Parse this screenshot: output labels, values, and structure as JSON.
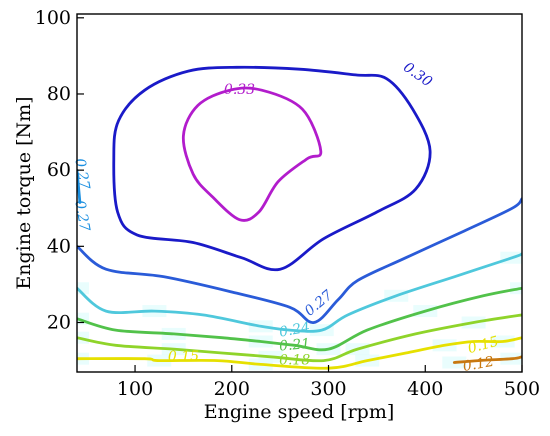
{
  "chart_data": {
    "type": "contour",
    "xlabel": "Engine speed [rpm]",
    "ylabel": "Engine torque [Nm]",
    "xlim": [
      40,
      500
    ],
    "ylim": [
      7,
      101
    ],
    "xticks": [
      100,
      200,
      300,
      400,
      500
    ],
    "yticks": [
      20,
      40,
      60,
      80,
      100
    ],
    "grid": false,
    "legend": "none",
    "levels": [
      {
        "value": 0.33,
        "label": "0.33",
        "color": "#b21ccc",
        "label_pos": [
          208,
          81
        ],
        "points": [
          [
            198,
            81
          ],
          [
            165,
            77
          ],
          [
            150,
            69
          ],
          [
            160,
            59
          ],
          [
            180,
            53
          ],
          [
            208,
            47
          ],
          [
            228,
            49
          ],
          [
            248,
            57
          ],
          [
            278,
            63
          ],
          [
            292,
            65
          ],
          [
            273,
            76
          ],
          [
            231,
            81
          ]
        ]
      },
      {
        "value": 0.3,
        "label": "0.30",
        "color": "#1a1ac8",
        "label_pos": [
          392,
          85
        ],
        "points": [
          [
            328,
            85
          ],
          [
            270,
            86.5
          ],
          [
            205,
            87
          ],
          [
            155,
            86
          ],
          [
            110,
            81
          ],
          [
            83,
            73
          ],
          [
            78,
            63
          ],
          [
            82,
            49
          ],
          [
            102,
            43
          ],
          [
            160,
            41
          ],
          [
            210,
            37
          ],
          [
            250,
            34
          ],
          [
            295,
            42
          ],
          [
            350,
            49
          ],
          [
            390,
            55
          ],
          [
            405,
            65
          ],
          [
            387,
            76
          ],
          [
            360,
            84
          ]
        ]
      },
      {
        "value": 0.27,
        "label": "0.27",
        "color": "#2a5bd8",
        "label_pos": [
          290,
          25
        ],
        "points": [
          [
            40,
            40
          ],
          [
            70,
            34
          ],
          [
            130,
            32
          ],
          [
            200,
            28
          ],
          [
            260,
            24
          ],
          [
            285,
            20
          ],
          [
            310,
            26
          ],
          [
            330,
            31
          ],
          [
            380,
            37
          ],
          [
            440,
            44
          ],
          [
            490,
            50
          ],
          [
            500,
            52.5
          ]
        ]
      },
      {
        "value": 0.27,
        "label": "0.27",
        "color": "#1b8fe0",
        "label_pos": [
          45,
          59
        ],
        "points": [
          [
            40,
            60
          ],
          [
            43,
            51.5
          ]
        ]
      },
      {
        "value": 0.27,
        "label": "0.27",
        "color": "#1b8fe0",
        "label_pos": [
          45,
          48
        ],
        "points": []
      },
      {
        "value": 0.24,
        "label": "0.24",
        "color": "#4fc8dc",
        "label_pos": [
          265,
          18
        ],
        "points": [
          [
            40,
            29
          ],
          [
            70,
            23
          ],
          [
            120,
            23
          ],
          [
            170,
            22
          ],
          [
            230,
            19
          ],
          [
            260,
            18
          ],
          [
            293,
            18
          ],
          [
            320,
            22
          ],
          [
            370,
            27
          ],
          [
            430,
            32
          ],
          [
            490,
            37
          ],
          [
            500,
            38
          ]
        ]
      },
      {
        "value": 0.21,
        "label": "0.21",
        "color": "#52c24a",
        "label_pos": [
          265,
          14
        ],
        "points": [
          [
            40,
            21
          ],
          [
            80,
            18
          ],
          [
            140,
            17
          ],
          [
            190,
            16
          ],
          [
            230,
            15
          ],
          [
            265,
            14
          ],
          [
            300,
            13
          ],
          [
            340,
            18
          ],
          [
            400,
            23
          ],
          [
            460,
            27
          ],
          [
            500,
            29
          ]
        ]
      },
      {
        "value": 0.18,
        "label": "0.18",
        "color": "#8fd42a",
        "label_pos": [
          265,
          10
        ],
        "points": [
          [
            40,
            16
          ],
          [
            80,
            14
          ],
          [
            140,
            13
          ],
          [
            190,
            12
          ],
          [
            240,
            11
          ],
          [
            295,
            10
          ],
          [
            330,
            13
          ],
          [
            390,
            17
          ],
          [
            450,
            20
          ],
          [
            500,
            22
          ]
        ]
      },
      {
        "value": 0.15,
        "label": "0.15",
        "color": "#e6e000",
        "label_pos": [
          150,
          11
        ],
        "points": [
          [
            40,
            10.5
          ],
          [
            110,
            10.5
          ],
          [
            125,
            10
          ],
          [
            185,
            10
          ],
          [
            230,
            9
          ],
          [
            300,
            8
          ],
          [
            340,
            10
          ],
          [
            380,
            12
          ],
          [
            420,
            14
          ],
          [
            450,
            15
          ],
          [
            480,
            15
          ],
          [
            500,
            16
          ]
        ]
      },
      {
        "value": 0.15,
        "label": "0.15",
        "color": "#e6e000",
        "label_pos": [
          460,
          14
        ],
        "points": []
      },
      {
        "value": 0.12,
        "label": "0.12",
        "color": "#c87810",
        "label_pos": [
          455,
          9
        ],
        "points": [
          [
            430,
            9.5
          ],
          [
            455,
            10
          ],
          [
            490,
            10.5
          ],
          [
            500,
            11
          ]
        ]
      }
    ]
  }
}
